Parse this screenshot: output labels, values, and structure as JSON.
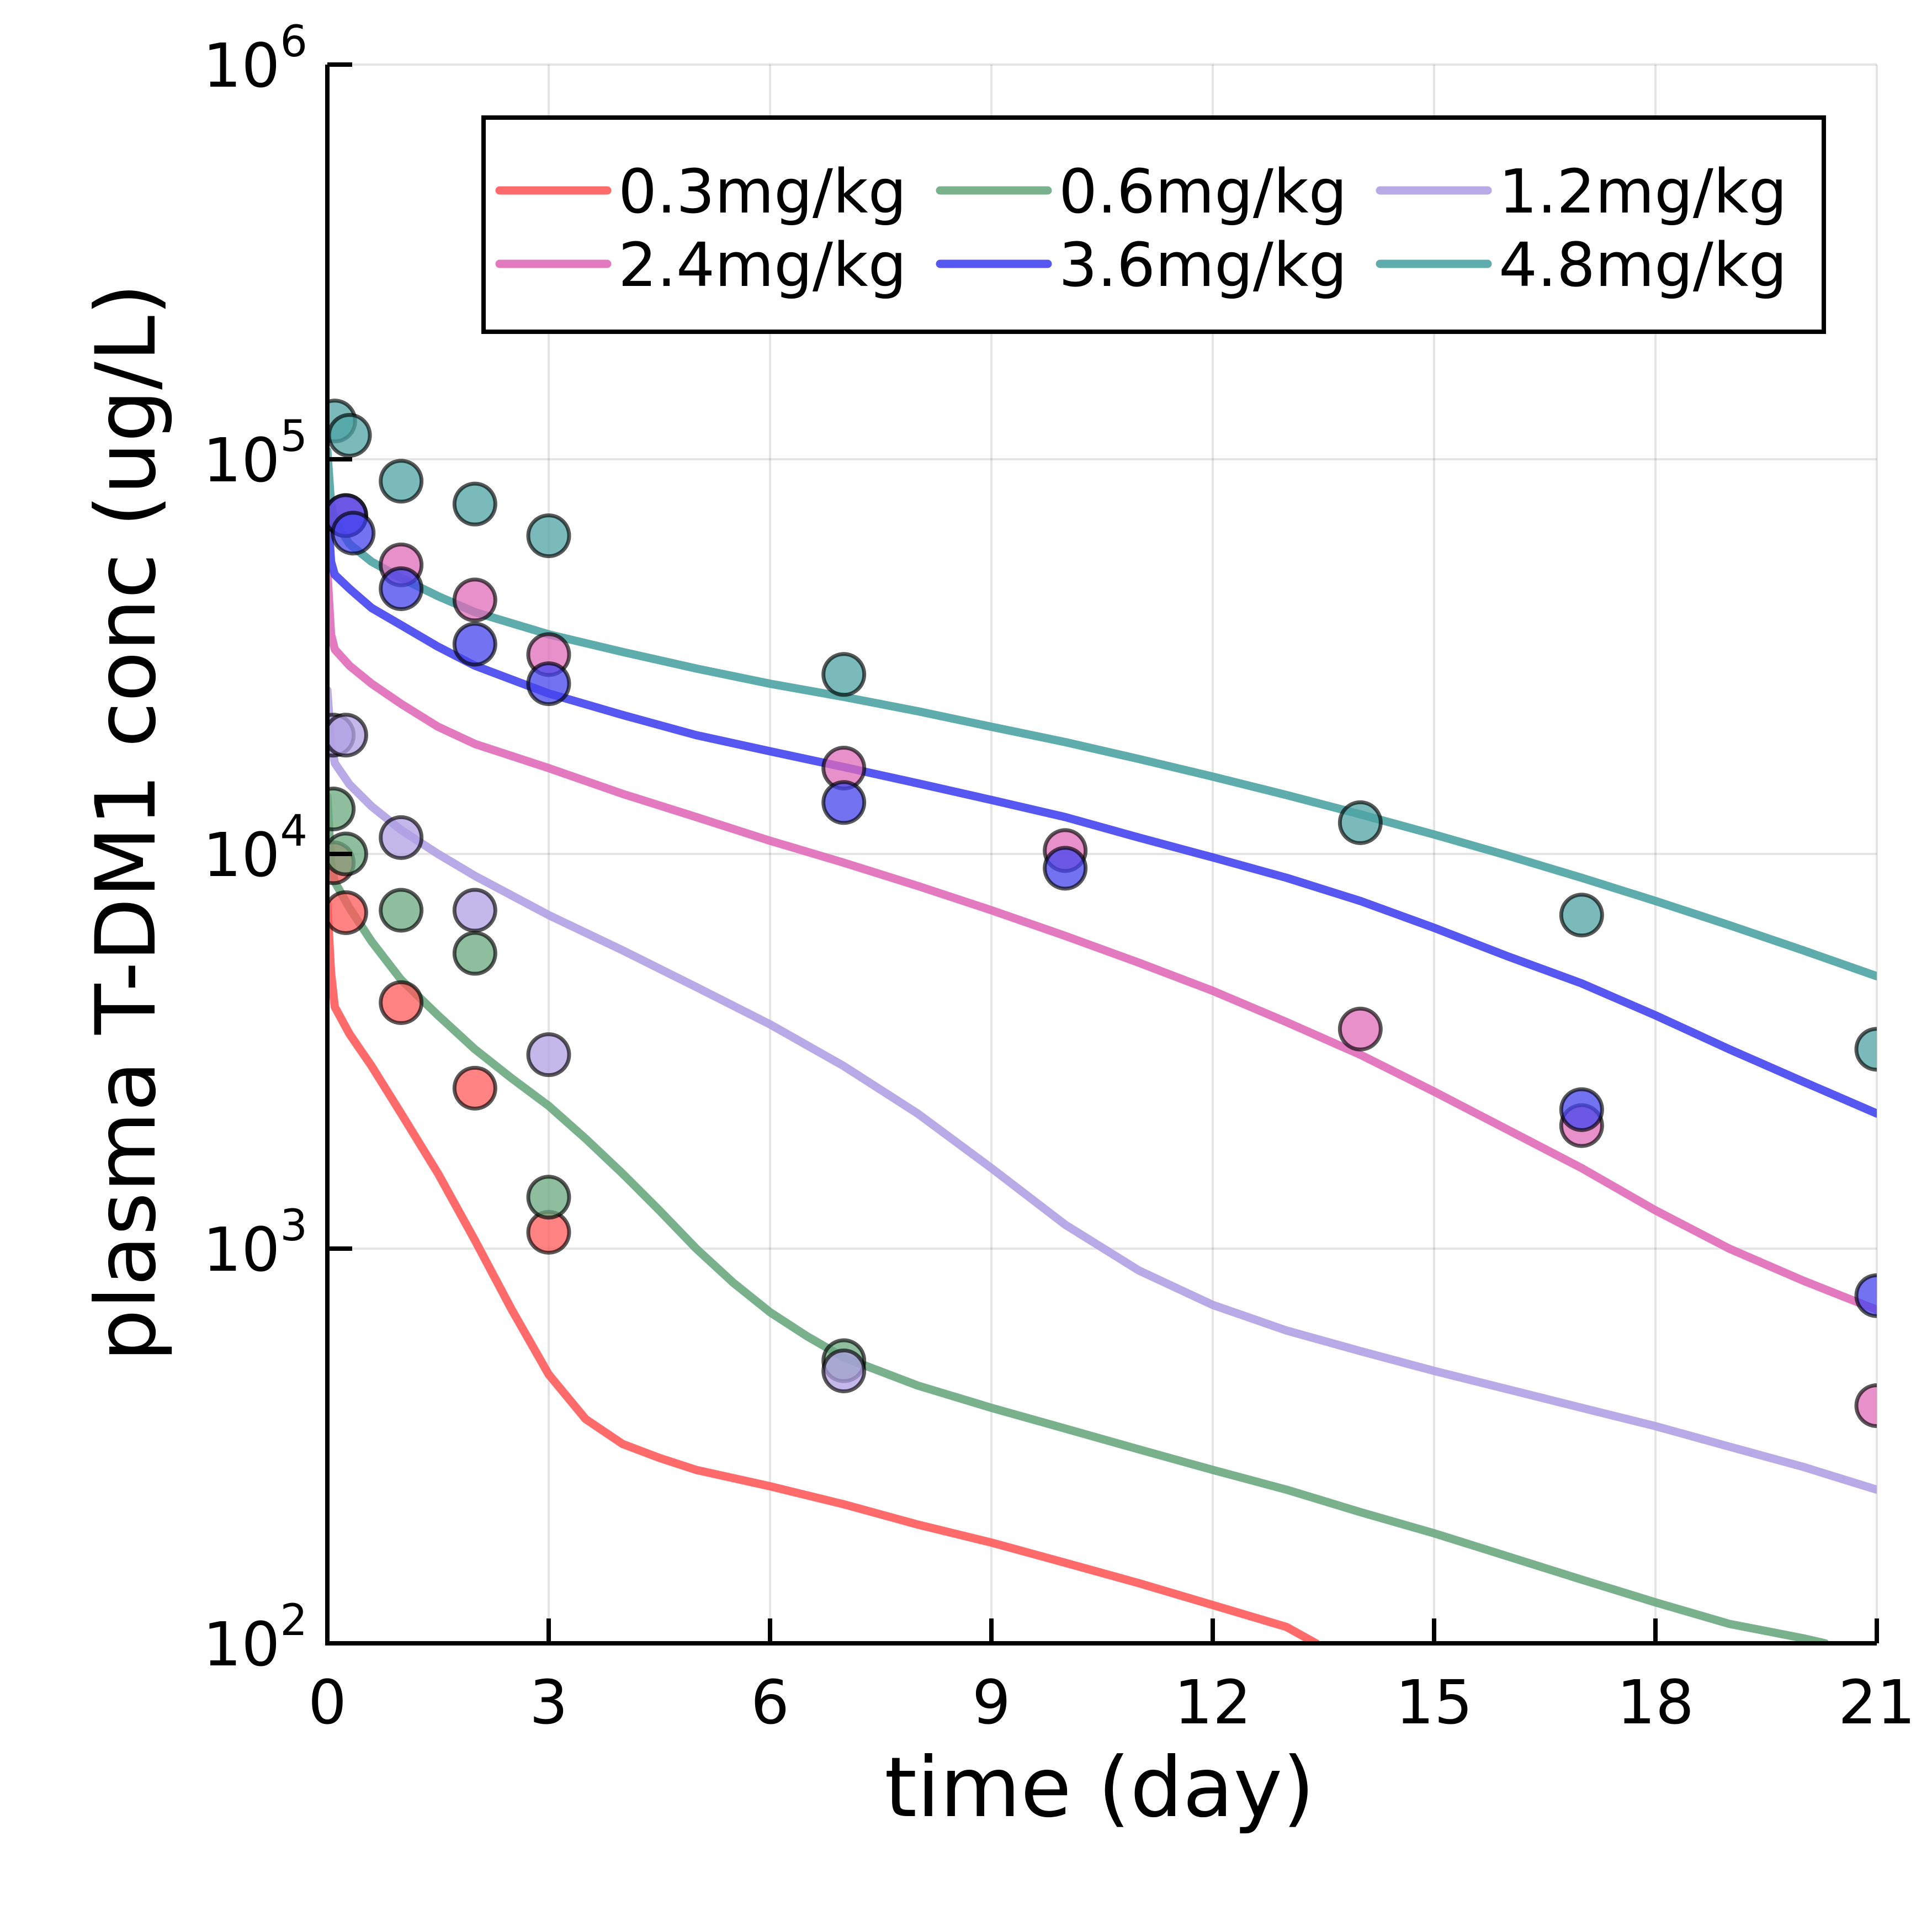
{
  "chart_data": {
    "type": "line",
    "title": "",
    "xlabel": "time (day)",
    "ylabel": "plasma T-DM1 conc (ug/L)",
    "xscale": "linear",
    "yscale": "log",
    "xlim": [
      0,
      21
    ],
    "ylim": [
      100,
      1000000
    ],
    "grid": true,
    "legend_position": "top-right",
    "legend_columns": 3,
    "x_ticks": [
      "0",
      "3",
      "6",
      "9",
      "12",
      "15",
      "18",
      "21"
    ],
    "x_tick_values": [
      0,
      3,
      6,
      9,
      12,
      15,
      18,
      21
    ],
    "y_ticks": [
      {
        "value": 100,
        "base": "10",
        "exp": "2"
      },
      {
        "value": 1000,
        "base": "10",
        "exp": "3"
      },
      {
        "value": 10000,
        "base": "10",
        "exp": "4"
      },
      {
        "value": 100000,
        "base": "10",
        "exp": "5"
      },
      {
        "value": 1000000,
        "base": "10",
        "exp": "6"
      }
    ],
    "series": [
      {
        "name": "0.3mg/kg",
        "color": "#ff5a5a",
        "x": [
          0.0,
          0.05,
          0.1,
          0.3,
          0.6,
          1.0,
          1.5,
          2.0,
          2.5,
          3.0,
          3.5,
          4.0,
          4.5,
          5.0,
          6.0,
          7.0,
          8.0,
          9.0,
          10.0,
          11.0,
          12.0,
          13.0,
          13.4
        ],
        "y": [
          7500,
          5000,
          4100,
          3500,
          2900,
          2200,
          1550,
          1050,
          700,
          480,
          370,
          320,
          295,
          275,
          250,
          225,
          200,
          180,
          160,
          142,
          125,
          110,
          100
        ],
        "points_x": [
          0.08,
          0.25,
          1.0,
          2.0,
          3.0
        ],
        "points_y": [
          9500,
          7100,
          4200,
          2550,
          1100
        ]
      },
      {
        "name": "0.6mg/kg",
        "color": "#6aa87f",
        "x": [
          0.0,
          0.05,
          0.1,
          0.3,
          0.6,
          1.0,
          1.5,
          2.0,
          2.5,
          3.0,
          3.5,
          4.0,
          4.5,
          5.0,
          5.5,
          6.0,
          6.5,
          7.0,
          8.0,
          9.0,
          10.0,
          11.0,
          12.0,
          13.0,
          14.0,
          15.0,
          16.0,
          17.0,
          18.0,
          19.0,
          20.0,
          20.3
        ],
        "y": [
          14000,
          9500,
          8500,
          7300,
          6000,
          4800,
          3900,
          3200,
          2700,
          2300,
          1900,
          1550,
          1250,
          1000,
          820,
          690,
          600,
          530,
          450,
          395,
          350,
          310,
          275,
          245,
          215,
          190,
          166,
          145,
          127,
          112,
          103,
          100
        ],
        "points_x": [
          0.08,
          0.25,
          1.0,
          2.0,
          3.0,
          7.0
        ],
        "points_y": [
          13000,
          10000,
          7200,
          5600,
          1350,
          520
        ]
      },
      {
        "name": "1.2mg/kg",
        "color": "#b0a0e4",
        "x": [
          0.0,
          0.05,
          0.1,
          0.3,
          0.6,
          1.0,
          1.5,
          2.0,
          3.0,
          4.0,
          5.0,
          6.0,
          7.0,
          8.0,
          9.0,
          10.0,
          11.0,
          12.0,
          13.0,
          14.0,
          15.0,
          16.0,
          17.0,
          18.0,
          19.0,
          20.0,
          21.0
        ],
        "y": [
          26000,
          19000,
          17000,
          15000,
          13200,
          11500,
          10000,
          8800,
          7000,
          5700,
          4600,
          3700,
          2900,
          2200,
          1600,
          1150,
          880,
          720,
          620,
          550,
          490,
          440,
          395,
          355,
          315,
          280,
          245
        ],
        "points_x": [
          0.08,
          0.25,
          1.0,
          2.0,
          3.0,
          7.0
        ],
        "points_y": [
          20000,
          20000,
          11000,
          7200,
          3100,
          490
        ]
      },
      {
        "name": "2.4mg/kg",
        "color": "#e06bb8",
        "x": [
          0.0,
          0.05,
          0.1,
          0.3,
          0.6,
          1.0,
          1.5,
          2.0,
          3.0,
          4.0,
          5.0,
          6.0,
          7.0,
          8.0,
          9.0,
          10.0,
          11.0,
          12.0,
          13.0,
          14.0,
          15.0,
          16.0,
          17.0,
          18.0,
          19.0,
          20.0,
          21.0
        ],
        "y": [
          52000,
          36000,
          33000,
          30000,
          27000,
          24000,
          21000,
          19000,
          16500,
          14200,
          12400,
          10800,
          9500,
          8300,
          7200,
          6200,
          5300,
          4500,
          3750,
          3100,
          2500,
          2000,
          1600,
          1250,
          1000,
          830,
          700
        ],
        "points_x": [
          0.25,
          1.0,
          2.0,
          3.0,
          7.0,
          10.0,
          14.0,
          17.0,
          21.0
        ],
        "points_y": [
          72000,
          54000,
          44000,
          32000,
          16500,
          10200,
          3600,
          2050,
          400
        ]
      },
      {
        "name": "3.6mg/kg",
        "color": "#4444ee",
        "x": [
          0.0,
          0.05,
          0.1,
          0.3,
          0.6,
          1.0,
          1.5,
          2.0,
          3.0,
          4.0,
          5.0,
          6.0,
          7.0,
          8.0,
          9.0,
          10.0,
          11.0,
          12.0,
          13.0,
          14.0,
          15.0,
          16.0,
          17.0,
          18.0,
          19.0,
          20.0,
          21.0
        ],
        "y": [
          78000,
          55000,
          51000,
          47000,
          42000,
          38000,
          33500,
          30000,
          25500,
          22500,
          20000,
          18200,
          16600,
          15100,
          13700,
          12400,
          11000,
          9800,
          8700,
          7600,
          6500,
          5500,
          4700,
          3900,
          3200,
          2650,
          2200
        ],
        "points_x": [
          0.25,
          0.35,
          1.0,
          2.0,
          3.0,
          7.0,
          10.0,
          17.0,
          21.0
        ],
        "points_y": [
          72000,
          65000,
          47000,
          34000,
          27000,
          13500,
          9200,
          2250,
          760
        ]
      },
      {
        "name": "4.8mg/kg",
        "color": "#4da3a3",
        "x": [
          0.0,
          0.05,
          0.1,
          0.3,
          0.6,
          1.0,
          1.5,
          2.0,
          3.0,
          4.0,
          5.0,
          6.0,
          7.0,
          8.0,
          9.0,
          10.0,
          11.0,
          12.0,
          13.0,
          14.0,
          15.0,
          16.0,
          17.0,
          18.0,
          19.0,
          20.0,
          21.0
        ],
        "y": [
          105000,
          77000,
          70000,
          61000,
          55000,
          50000,
          45000,
          41000,
          36000,
          32500,
          29500,
          27000,
          25000,
          23000,
          21000,
          19200,
          17400,
          15700,
          14100,
          12600,
          11200,
          9900,
          8700,
          7600,
          6600,
          5700,
          4900
        ],
        "points_x": [
          0.1,
          0.3,
          1.0,
          2.0,
          3.0,
          7.0,
          14.0,
          17.0,
          21.0
        ],
        "points_y": [
          125000,
          115000,
          88000,
          77000,
          64000,
          28500,
          12000,
          7000,
          3200
        ]
      }
    ]
  }
}
